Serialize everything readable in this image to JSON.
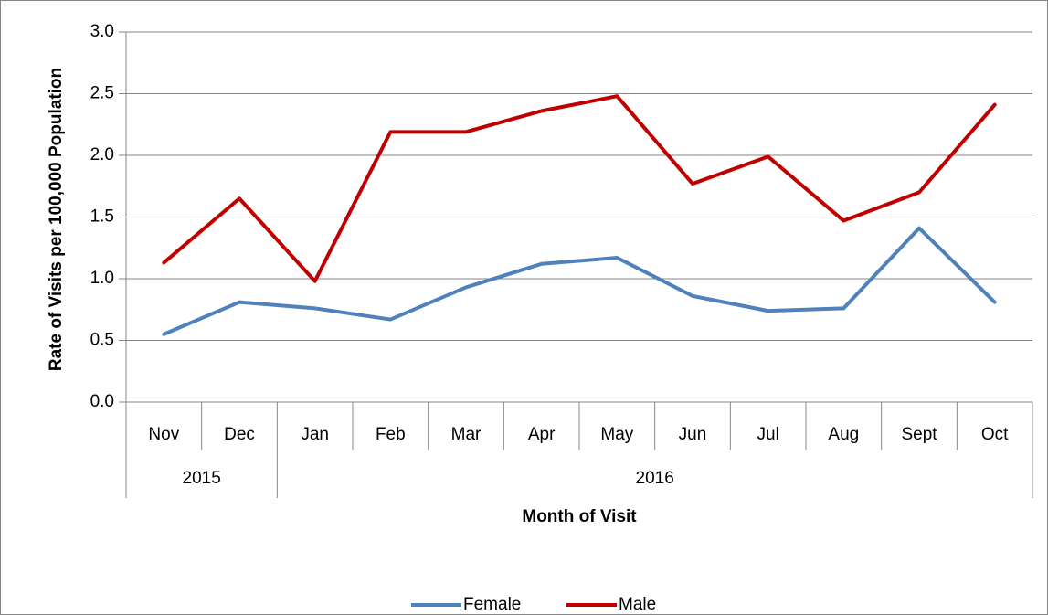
{
  "chart_data": {
    "type": "line",
    "x_label": "Month of Visit",
    "y_label": "Rate of Visits per 100,000 Population",
    "categories": [
      "Nov",
      "Dec",
      "Jan",
      "Feb",
      "Mar",
      "Apr",
      "May",
      "Jun",
      "Jul",
      "Aug",
      "Sept",
      "Oct"
    ],
    "category_years": [
      "2015",
      "2015",
      "2016",
      "2016",
      "2016",
      "2016",
      "2016",
      "2016",
      "2016",
      "2016",
      "2016",
      "2016"
    ],
    "series": [
      {
        "name": "Female",
        "color": "#4f81bd",
        "values": [
          0.55,
          0.81,
          0.76,
          0.67,
          0.93,
          1.12,
          1.17,
          0.86,
          0.74,
          0.76,
          1.41,
          0.81
        ]
      },
      {
        "name": "Male",
        "color": "#c00000",
        "values": [
          1.13,
          1.65,
          0.98,
          2.19,
          2.19,
          2.36,
          2.48,
          1.77,
          1.99,
          1.47,
          1.7,
          2.41
        ]
      }
    ],
    "ylim": [
      0,
      3
    ],
    "yticks": [
      {
        "value": 0,
        "label": "0.0"
      },
      0.5,
      {
        "value": 1,
        "label": "1.0"
      },
      1.5,
      {
        "value": 2,
        "label": "2.0"
      },
      2.5,
      {
        "value": 3,
        "label": "3.0"
      }
    ],
    "grid": true,
    "legend": "bottom"
  }
}
